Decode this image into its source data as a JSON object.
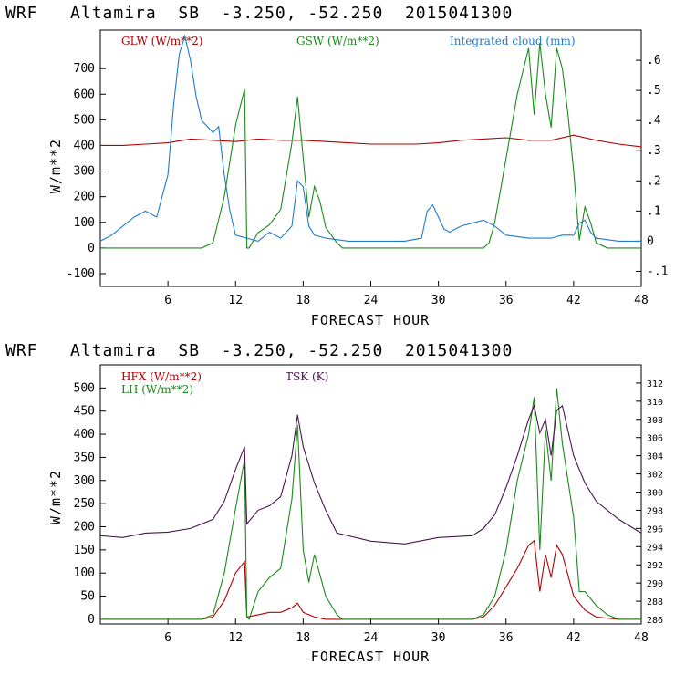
{
  "chart_data": [
    {
      "type": "line",
      "title": "WRF   Altamira  SB  -3.250, -52.250  2015041300",
      "xlabel": "FORECAST HOUR",
      "ylabel": "W/m**2",
      "xlim": [
        0,
        48
      ],
      "ylim": [
        -150,
        850
      ],
      "y2lim": [
        -0.15,
        0.7
      ],
      "x_ticks": [
        "6",
        "12",
        "18",
        "24",
        "30",
        "36",
        "42",
        "48"
      ],
      "y_ticks": [
        "-100",
        "0",
        "100",
        "200",
        "300",
        "400",
        "500",
        "600",
        "700"
      ],
      "y2_ticks": [
        "-.1",
        "0",
        ".1",
        ".2",
        ".3",
        ".4",
        ".5",
        ".6"
      ],
      "series": [
        {
          "name": "GLW (W/m**2)",
          "color": "#b00000",
          "axis": "left",
          "x": [
            0,
            2,
            4,
            6,
            8,
            10,
            12,
            14,
            16,
            18,
            20,
            22,
            24,
            26,
            28,
            30,
            32,
            34,
            36,
            38,
            40,
            42,
            44,
            46,
            48
          ],
          "y": [
            400,
            400,
            405,
            410,
            425,
            420,
            415,
            425,
            420,
            420,
            415,
            410,
            405,
            405,
            405,
            410,
            420,
            425,
            430,
            420,
            420,
            440,
            420,
            405,
            395
          ]
        },
        {
          "name": "GSW (W/m**2)",
          "color": "#1a8a1a",
          "axis": "left",
          "x": [
            0,
            9,
            10,
            11,
            12,
            12.8,
            13.0,
            13.2,
            14,
            15,
            16,
            17,
            17.5,
            18,
            18.5,
            19,
            19.5,
            20,
            21,
            21.5,
            22,
            34,
            34.5,
            35,
            36,
            37,
            38,
            38.5,
            39,
            39.5,
            40,
            40.5,
            41,
            41.5,
            42,
            42.5,
            43,
            43.5,
            44,
            45,
            46,
            48
          ],
          "y": [
            0,
            0,
            20,
            200,
            480,
            620,
            0,
            0,
            60,
            90,
            150,
            410,
            590,
            350,
            120,
            240,
            180,
            80,
            20,
            0,
            0,
            0,
            20,
            100,
            350,
            600,
            780,
            520,
            800,
            600,
            470,
            780,
            700,
            520,
            300,
            30,
            160,
            100,
            20,
            0,
            0,
            0
          ]
        },
        {
          "name": "Integrated cloud (mm)",
          "color": "#1f7ad0",
          "axis": "right",
          "x": [
            0,
            1,
            2,
            3,
            4,
            5,
            6,
            6.5,
            7,
            7.5,
            8,
            8.5,
            9,
            9.5,
            10,
            10.5,
            11,
            11.5,
            12,
            14,
            15,
            16,
            17,
            17.5,
            18,
            18.5,
            19,
            20,
            22,
            24,
            27,
            28.5,
            29,
            29.5,
            30,
            30.5,
            31,
            32,
            34,
            35,
            36,
            38,
            40,
            41,
            42,
            42.5,
            43,
            43.5,
            44,
            46,
            48
          ],
          "y": [
            0,
            0.02,
            0.05,
            0.08,
            0.1,
            0.08,
            0.22,
            0.45,
            0.62,
            0.68,
            0.6,
            0.48,
            0.4,
            0.38,
            0.36,
            0.38,
            0.22,
            0.1,
            0.02,
            0,
            0.03,
            0.01,
            0.05,
            0.2,
            0.18,
            0.05,
            0.02,
            0.01,
            0,
            0,
            0,
            0.01,
            0.1,
            0.12,
            0.08,
            0.04,
            0.03,
            0.05,
            0.07,
            0.05,
            0.02,
            0.01,
            0.01,
            0.02,
            0.02,
            0.06,
            0.07,
            0.03,
            0.01,
            0,
            0
          ]
        }
      ]
    },
    {
      "type": "line",
      "title": "WRF   Altamira  SB  -3.250, -52.250  2015041300",
      "xlabel": "FORECAST HOUR",
      "ylabel": "W/m**2",
      "xlim": [
        0,
        48
      ],
      "ylim": [
        -10,
        550
      ],
      "y2lim": [
        285.5,
        314
      ],
      "x_ticks": [
        "6",
        "12",
        "18",
        "24",
        "30",
        "36",
        "42",
        "48"
      ],
      "y_ticks": [
        "0",
        "50",
        "100",
        "150",
        "200",
        "250",
        "300",
        "350",
        "400",
        "450",
        "500"
      ],
      "y2_ticks": [
        "286",
        "288",
        "290",
        "292",
        "294",
        "296",
        "298",
        "300",
        "302",
        "304",
        "306",
        "308",
        "310",
        "312"
      ],
      "series": [
        {
          "name": "HFX (W/m**2)",
          "color": "#b00000",
          "axis": "left",
          "x": [
            0,
            9,
            10,
            11,
            12,
            12.8,
            13.0,
            14,
            15,
            16,
            17,
            17.5,
            18,
            19,
            20,
            21,
            22,
            33,
            34,
            35,
            36,
            37,
            38,
            38.5,
            39,
            39.5,
            40,
            40.5,
            41,
            42,
            43,
            44,
            46,
            48
          ],
          "y": [
            0,
            0,
            5,
            40,
            100,
            125,
            5,
            10,
            15,
            15,
            25,
            35,
            15,
            5,
            0,
            0,
            0,
            0,
            5,
            30,
            70,
            110,
            160,
            170,
            60,
            140,
            90,
            160,
            140,
            50,
            20,
            5,
            0,
            0
          ]
        },
        {
          "name": "LH (W/m**2)",
          "color": "#1a8a1a",
          "axis": "left",
          "x": [
            0,
            9,
            10,
            11,
            12,
            12.8,
            13.0,
            13.2,
            14,
            15,
            16,
            17,
            17.5,
            18,
            18.5,
            19,
            20,
            21,
            21.5,
            22,
            33,
            34,
            35,
            36,
            37,
            38,
            38.5,
            39,
            39.5,
            40,
            40.5,
            41,
            42,
            42.5,
            43,
            44,
            45,
            46,
            48
          ],
          "y": [
            0,
            0,
            10,
            100,
            240,
            345,
            5,
            0,
            60,
            90,
            110,
            260,
            420,
            150,
            80,
            140,
            50,
            10,
            0,
            0,
            0,
            10,
            50,
            150,
            300,
            400,
            480,
            150,
            410,
            300,
            500,
            380,
            220,
            60,
            60,
            30,
            10,
            0,
            0
          ]
        },
        {
          "name": "TSK (K)",
          "color": "#4a1450",
          "axis": "right",
          "x": [
            0,
            2,
            4,
            6,
            8,
            10,
            11,
            12,
            12.8,
            13.0,
            14,
            15,
            16,
            17,
            17.5,
            18,
            19,
            20,
            21,
            24,
            27,
            30,
            33,
            34,
            35,
            36,
            37,
            38,
            38.5,
            39,
            39.5,
            40,
            40.5,
            41,
            42,
            43,
            44,
            46,
            48
          ],
          "y": [
            295.2,
            295.0,
            295.5,
            295.6,
            296.0,
            297.0,
            299.0,
            302.5,
            305.0,
            296.5,
            298.0,
            298.5,
            299.5,
            304.0,
            308.5,
            305.0,
            301.0,
            298.0,
            295.5,
            294.6,
            294.3,
            295.0,
            295.2,
            296.0,
            297.5,
            300.5,
            304.0,
            308.0,
            309.5,
            306.5,
            308.0,
            304.0,
            309.0,
            309.5,
            304.0,
            301.0,
            299.0,
            297.0,
            295.5
          ]
        }
      ]
    }
  ],
  "legend": {
    "top": [
      {
        "label": "GLW (W/m**2)",
        "color": "#b00000"
      },
      {
        "label": "GSW (W/m**2)",
        "color": "#1a8a1a"
      },
      {
        "label": "Integrated cloud (mm)",
        "color": "#1f7ad0"
      }
    ],
    "bottom": [
      {
        "label": "HFX (W/m**2)",
        "color": "#b00000"
      },
      {
        "label": "LH (W/m**2)",
        "color": "#1a8a1a"
      },
      {
        "label": "TSK (K)",
        "color": "#4a1450"
      }
    ]
  }
}
